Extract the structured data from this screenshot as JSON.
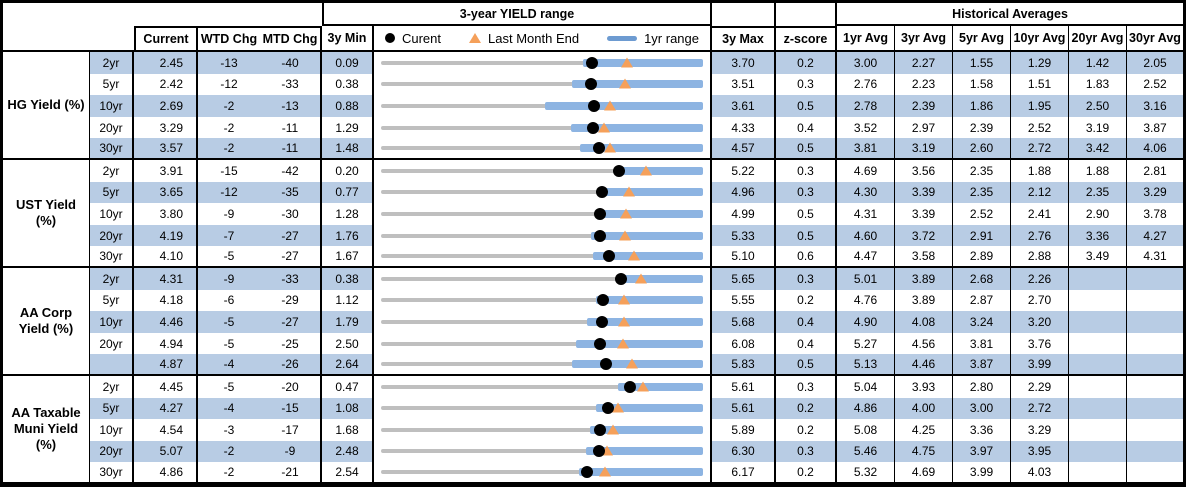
{
  "chart_data": {
    "type": "table",
    "title": "3-year YIELD range",
    "headers": {
      "chart_group": "3-year YIELD range",
      "hist_group": "Historical Averages",
      "current": "Current",
      "wtd": "WTD Chg",
      "mtd": "MTD Chg",
      "min3y": "3y Min",
      "max3y": "3y Max",
      "zscore": "z-score",
      "avg": [
        "1yr Avg",
        "3yr Avg",
        "5yr Avg",
        "10yr Avg",
        "20yr Avg",
        "30yr Avg"
      ]
    },
    "legend": {
      "current": "Curent",
      "last_month": "Last Month End",
      "range": "1yr range"
    },
    "colors": {
      "row_band": "#b8cce4",
      "range_bar": "#8db4e2",
      "track": "#bfbfbf",
      "current_dot": "#000000",
      "last_month_marker": "#f5a05a"
    },
    "groups": [
      {
        "label": "HG Yield (%)",
        "rows": [
          {
            "tenor": "2yr",
            "current": "2.45",
            "wtd_chg": "-13",
            "mtd_chg": "-40",
            "min_3y": "0.09",
            "max_3y": "3.70",
            "z_score": "0.2",
            "avgs": [
              "3.00",
              "2.27",
              "1.55",
              "1.29",
              "1.42",
              "2.05"
            ],
            "range_1yr": {
              "lo": 2.36,
              "hi": 3.7
            },
            "last_month_end": 2.85
          },
          {
            "tenor": "5yr",
            "current": "2.42",
            "wtd_chg": "-12",
            "mtd_chg": "-33",
            "min_3y": "0.38",
            "max_3y": "3.51",
            "z_score": "0.3",
            "avgs": [
              "2.76",
              "2.23",
              "1.58",
              "1.51",
              "1.83",
              "2.52"
            ],
            "range_1yr": {
              "lo": 2.24,
              "hi": 3.51
            },
            "last_month_end": 2.75
          },
          {
            "tenor": "10yr",
            "current": "2.69",
            "wtd_chg": "-2",
            "mtd_chg": "-13",
            "min_3y": "0.88",
            "max_3y": "3.61",
            "z_score": "0.5",
            "avgs": [
              "2.78",
              "2.39",
              "1.86",
              "1.95",
              "2.50",
              "3.16"
            ],
            "range_1yr": {
              "lo": 2.27,
              "hi": 3.61
            },
            "last_month_end": 2.82
          },
          {
            "tenor": "20yr",
            "current": "3.29",
            "wtd_chg": "-2",
            "mtd_chg": "-11",
            "min_3y": "1.29",
            "max_3y": "4.33",
            "z_score": "0.4",
            "avgs": [
              "3.52",
              "2.97",
              "2.39",
              "2.52",
              "3.19",
              "3.87"
            ],
            "range_1yr": {
              "lo": 3.08,
              "hi": 4.33
            },
            "last_month_end": 3.4
          },
          {
            "tenor": "30yr",
            "current": "3.57",
            "wtd_chg": "-2",
            "mtd_chg": "-11",
            "min_3y": "1.48",
            "max_3y": "4.57",
            "z_score": "0.5",
            "avgs": [
              "3.81",
              "3.19",
              "2.60",
              "2.72",
              "3.42",
              "4.06"
            ],
            "range_1yr": {
              "lo": 3.39,
              "hi": 4.57
            },
            "last_month_end": 3.68
          }
        ]
      },
      {
        "label": "UST Yield (%)",
        "rows": [
          {
            "tenor": "2yr",
            "current": "3.91",
            "wtd_chg": "-15",
            "mtd_chg": "-42",
            "min_3y": "0.20",
            "max_3y": "5.22",
            "z_score": "0.3",
            "avgs": [
              "4.69",
              "3.56",
              "2.35",
              "1.88",
              "1.88",
              "2.81"
            ],
            "range_1yr": {
              "lo": 3.88,
              "hi": 5.22
            },
            "last_month_end": 4.33
          },
          {
            "tenor": "5yr",
            "current": "3.65",
            "wtd_chg": "-12",
            "mtd_chg": "-35",
            "min_3y": "0.77",
            "max_3y": "4.96",
            "z_score": "0.3",
            "avgs": [
              "4.30",
              "3.39",
              "2.35",
              "2.12",
              "2.35",
              "3.29"
            ],
            "range_1yr": {
              "lo": 3.6,
              "hi": 4.96
            },
            "last_month_end": 4.0
          },
          {
            "tenor": "10yr",
            "current": "3.80",
            "wtd_chg": "-9",
            "mtd_chg": "-30",
            "min_3y": "1.28",
            "max_3y": "4.99",
            "z_score": "0.5",
            "avgs": [
              "4.31",
              "3.39",
              "2.52",
              "2.41",
              "2.90",
              "3.78"
            ],
            "range_1yr": {
              "lo": 3.75,
              "hi": 4.99
            },
            "last_month_end": 4.1
          },
          {
            "tenor": "20yr",
            "current": "4.19",
            "wtd_chg": "-7",
            "mtd_chg": "-27",
            "min_3y": "1.76",
            "max_3y": "5.33",
            "z_score": "0.5",
            "avgs": [
              "4.60",
              "3.72",
              "2.91",
              "2.76",
              "3.36",
              "4.27"
            ],
            "range_1yr": {
              "lo": 4.09,
              "hi": 5.33
            },
            "last_month_end": 4.46
          },
          {
            "tenor": "30yr",
            "current": "4.10",
            "wtd_chg": "-5",
            "mtd_chg": "-27",
            "min_3y": "1.67",
            "max_3y": "5.10",
            "z_score": "0.6",
            "avgs": [
              "4.47",
              "3.58",
              "2.89",
              "2.88",
              "3.49",
              "4.31"
            ],
            "range_1yr": {
              "lo": 3.93,
              "hi": 5.1
            },
            "last_month_end": 4.37
          }
        ]
      },
      {
        "label": "AA Corp Yield (%)",
        "rows": [
          {
            "tenor": "2yr",
            "current": "4.31",
            "wtd_chg": "-9",
            "mtd_chg": "-33",
            "min_3y": "0.38",
            "max_3y": "5.65",
            "z_score": "0.3",
            "avgs": [
              "5.01",
              "3.89",
              "2.68",
              "2.26",
              "",
              ""
            ],
            "range_1yr": {
              "lo": 4.23,
              "hi": 5.65
            },
            "last_month_end": 4.64
          },
          {
            "tenor": "5yr",
            "current": "4.18",
            "wtd_chg": "-6",
            "mtd_chg": "-29",
            "min_3y": "1.12",
            "max_3y": "5.55",
            "z_score": "0.2",
            "avgs": [
              "4.76",
              "3.89",
              "2.87",
              "2.70",
              "",
              ""
            ],
            "range_1yr": {
              "lo": 4.08,
              "hi": 5.55
            },
            "last_month_end": 4.47
          },
          {
            "tenor": "10yr",
            "current": "4.46",
            "wtd_chg": "-5",
            "mtd_chg": "-27",
            "min_3y": "1.79",
            "max_3y": "5.68",
            "z_score": "0.4",
            "avgs": [
              "4.90",
              "4.08",
              "3.24",
              "3.20",
              "",
              ""
            ],
            "range_1yr": {
              "lo": 4.28,
              "hi": 5.68
            },
            "last_month_end": 4.73
          },
          {
            "tenor": "20yr",
            "current": "4.94",
            "wtd_chg": "-5",
            "mtd_chg": "-25",
            "min_3y": "2.50",
            "max_3y": "6.08",
            "z_score": "0.4",
            "avgs": [
              "5.27",
              "4.56",
              "3.81",
              "3.76",
              "",
              ""
            ],
            "range_1yr": {
              "lo": 4.67,
              "hi": 6.08
            },
            "last_month_end": 5.19
          },
          {
            "tenor": "",
            "current": "4.87",
            "wtd_chg": "-4",
            "mtd_chg": "-26",
            "min_3y": "2.64",
            "max_3y": "5.83",
            "z_score": "0.5",
            "avgs": [
              "5.13",
              "4.46",
              "3.87",
              "3.99",
              "",
              ""
            ],
            "range_1yr": {
              "lo": 4.53,
              "hi": 5.83
            },
            "last_month_end": 5.13
          }
        ]
      },
      {
        "label": "AA Taxable Muni Yield (%)",
        "rows": [
          {
            "tenor": "2yr",
            "current": "4.45",
            "wtd_chg": "-5",
            "mtd_chg": "-20",
            "min_3y": "0.47",
            "max_3y": "5.61",
            "z_score": "0.3",
            "avgs": [
              "5.04",
              "3.93",
              "2.80",
              "2.29",
              "",
              ""
            ],
            "range_1yr": {
              "lo": 4.25,
              "hi": 5.61
            },
            "last_month_end": 4.65
          },
          {
            "tenor": "5yr",
            "current": "4.27",
            "wtd_chg": "-4",
            "mtd_chg": "-15",
            "min_3y": "1.08",
            "max_3y": "5.61",
            "z_score": "0.2",
            "avgs": [
              "4.86",
              "4.00",
              "3.00",
              "2.72",
              "",
              ""
            ],
            "range_1yr": {
              "lo": 4.1,
              "hi": 5.61
            },
            "last_month_end": 4.42
          },
          {
            "tenor": "10yr",
            "current": "4.54",
            "wtd_chg": "-3",
            "mtd_chg": "-17",
            "min_3y": "1.68",
            "max_3y": "5.89",
            "z_score": "0.2",
            "avgs": [
              "5.08",
              "4.25",
              "3.36",
              "3.29",
              "",
              ""
            ],
            "range_1yr": {
              "lo": 4.41,
              "hi": 5.89
            },
            "last_month_end": 4.71
          },
          {
            "tenor": "20yr",
            "current": "5.07",
            "wtd_chg": "-2",
            "mtd_chg": "-9",
            "min_3y": "2.48",
            "max_3y": "6.30",
            "z_score": "0.3",
            "avgs": [
              "5.46",
              "4.75",
              "3.97",
              "3.95",
              "",
              ""
            ],
            "range_1yr": {
              "lo": 4.91,
              "hi": 6.3
            },
            "last_month_end": 5.16
          },
          {
            "tenor": "30yr",
            "current": "4.86",
            "wtd_chg": "-2",
            "mtd_chg": "-21",
            "min_3y": "2.54",
            "max_3y": "6.17",
            "z_score": "0.2",
            "avgs": [
              "5.32",
              "4.69",
              "3.99",
              "4.03",
              "",
              ""
            ],
            "range_1yr": {
              "lo": 4.77,
              "hi": 6.17
            },
            "last_month_end": 5.07
          }
        ]
      }
    ]
  }
}
